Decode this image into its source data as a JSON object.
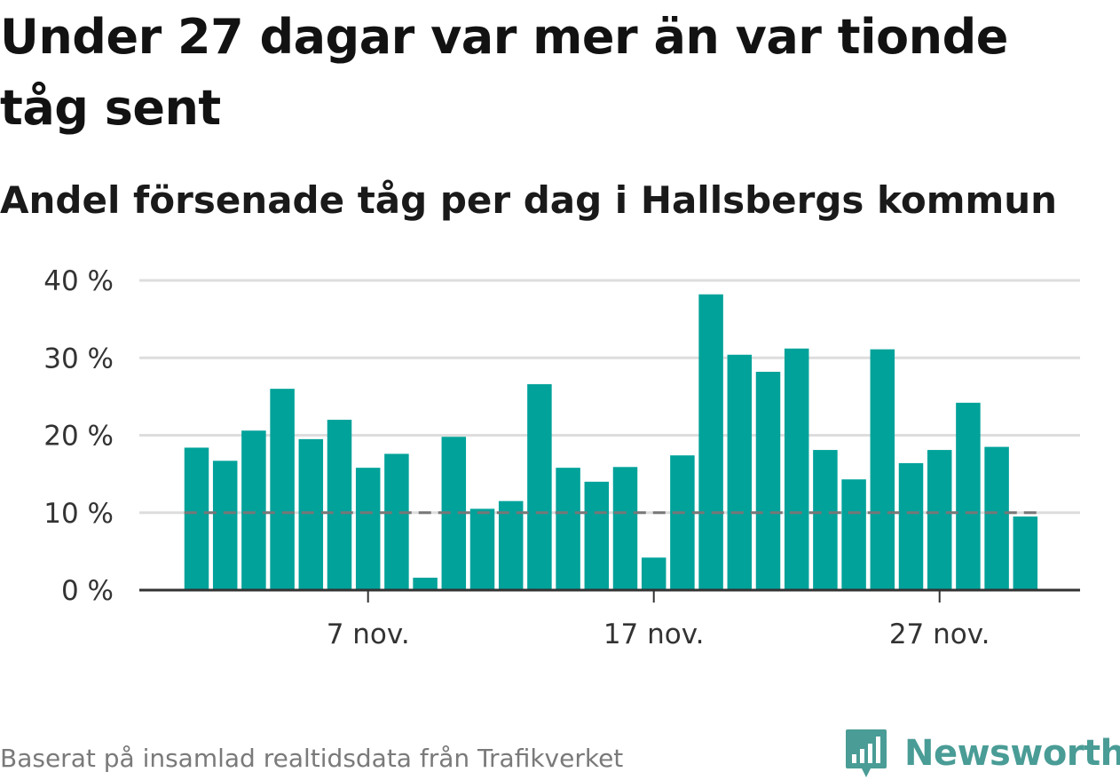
{
  "title": "Under 27 dagar var mer än var tionde tåg sent",
  "subtitle": "Andel försenade tåg per dag i Hallsbergs kommun",
  "footer": "Baserat på insamlad realtidsdata från Trafikverket",
  "brand": {
    "name": "Newsworthy",
    "color": "#4a9c96",
    "icon": "newsworthy-logo-icon"
  },
  "colors": {
    "bar": "#00a29a",
    "reference_line": "#777777",
    "grid": "#dddddd",
    "axis": "#333333"
  },
  "chart_data": {
    "type": "bar",
    "x": [
      "1 nov.",
      "2 nov.",
      "3 nov.",
      "4 nov.",
      "5 nov.",
      "6 nov.",
      "7 nov.",
      "8 nov.",
      "9 nov.",
      "10 nov.",
      "11 nov.",
      "12 nov.",
      "13 nov.",
      "14 nov.",
      "15 nov.",
      "16 nov.",
      "17 nov.",
      "18 nov.",
      "19 nov.",
      "20 nov.",
      "21 nov.",
      "22 nov.",
      "23 nov.",
      "24 nov.",
      "25 nov.",
      "26 nov.",
      "27 nov.",
      "28 nov.",
      "29 nov.",
      "30 nov."
    ],
    "values": [
      18.4,
      16.7,
      20.6,
      26.0,
      19.5,
      22.0,
      15.8,
      17.6,
      1.6,
      19.8,
      10.5,
      11.5,
      26.6,
      15.8,
      14.0,
      15.9,
      4.2,
      17.4,
      38.2,
      30.4,
      28.2,
      31.2,
      18.1,
      14.3,
      31.1,
      16.4,
      18.1,
      24.2,
      18.5,
      9.5
    ],
    "y_ticks": [
      0,
      10,
      20,
      30,
      40
    ],
    "y_tick_labels": [
      "0 %",
      "10 %",
      "20 %",
      "30 %",
      "40 %"
    ],
    "x_ticks": [
      "7 nov.",
      "17 nov.",
      "27 nov."
    ],
    "ylim": [
      0,
      40
    ],
    "reference_line": {
      "value": 10,
      "style": "dashed"
    },
    "grid": true
  }
}
